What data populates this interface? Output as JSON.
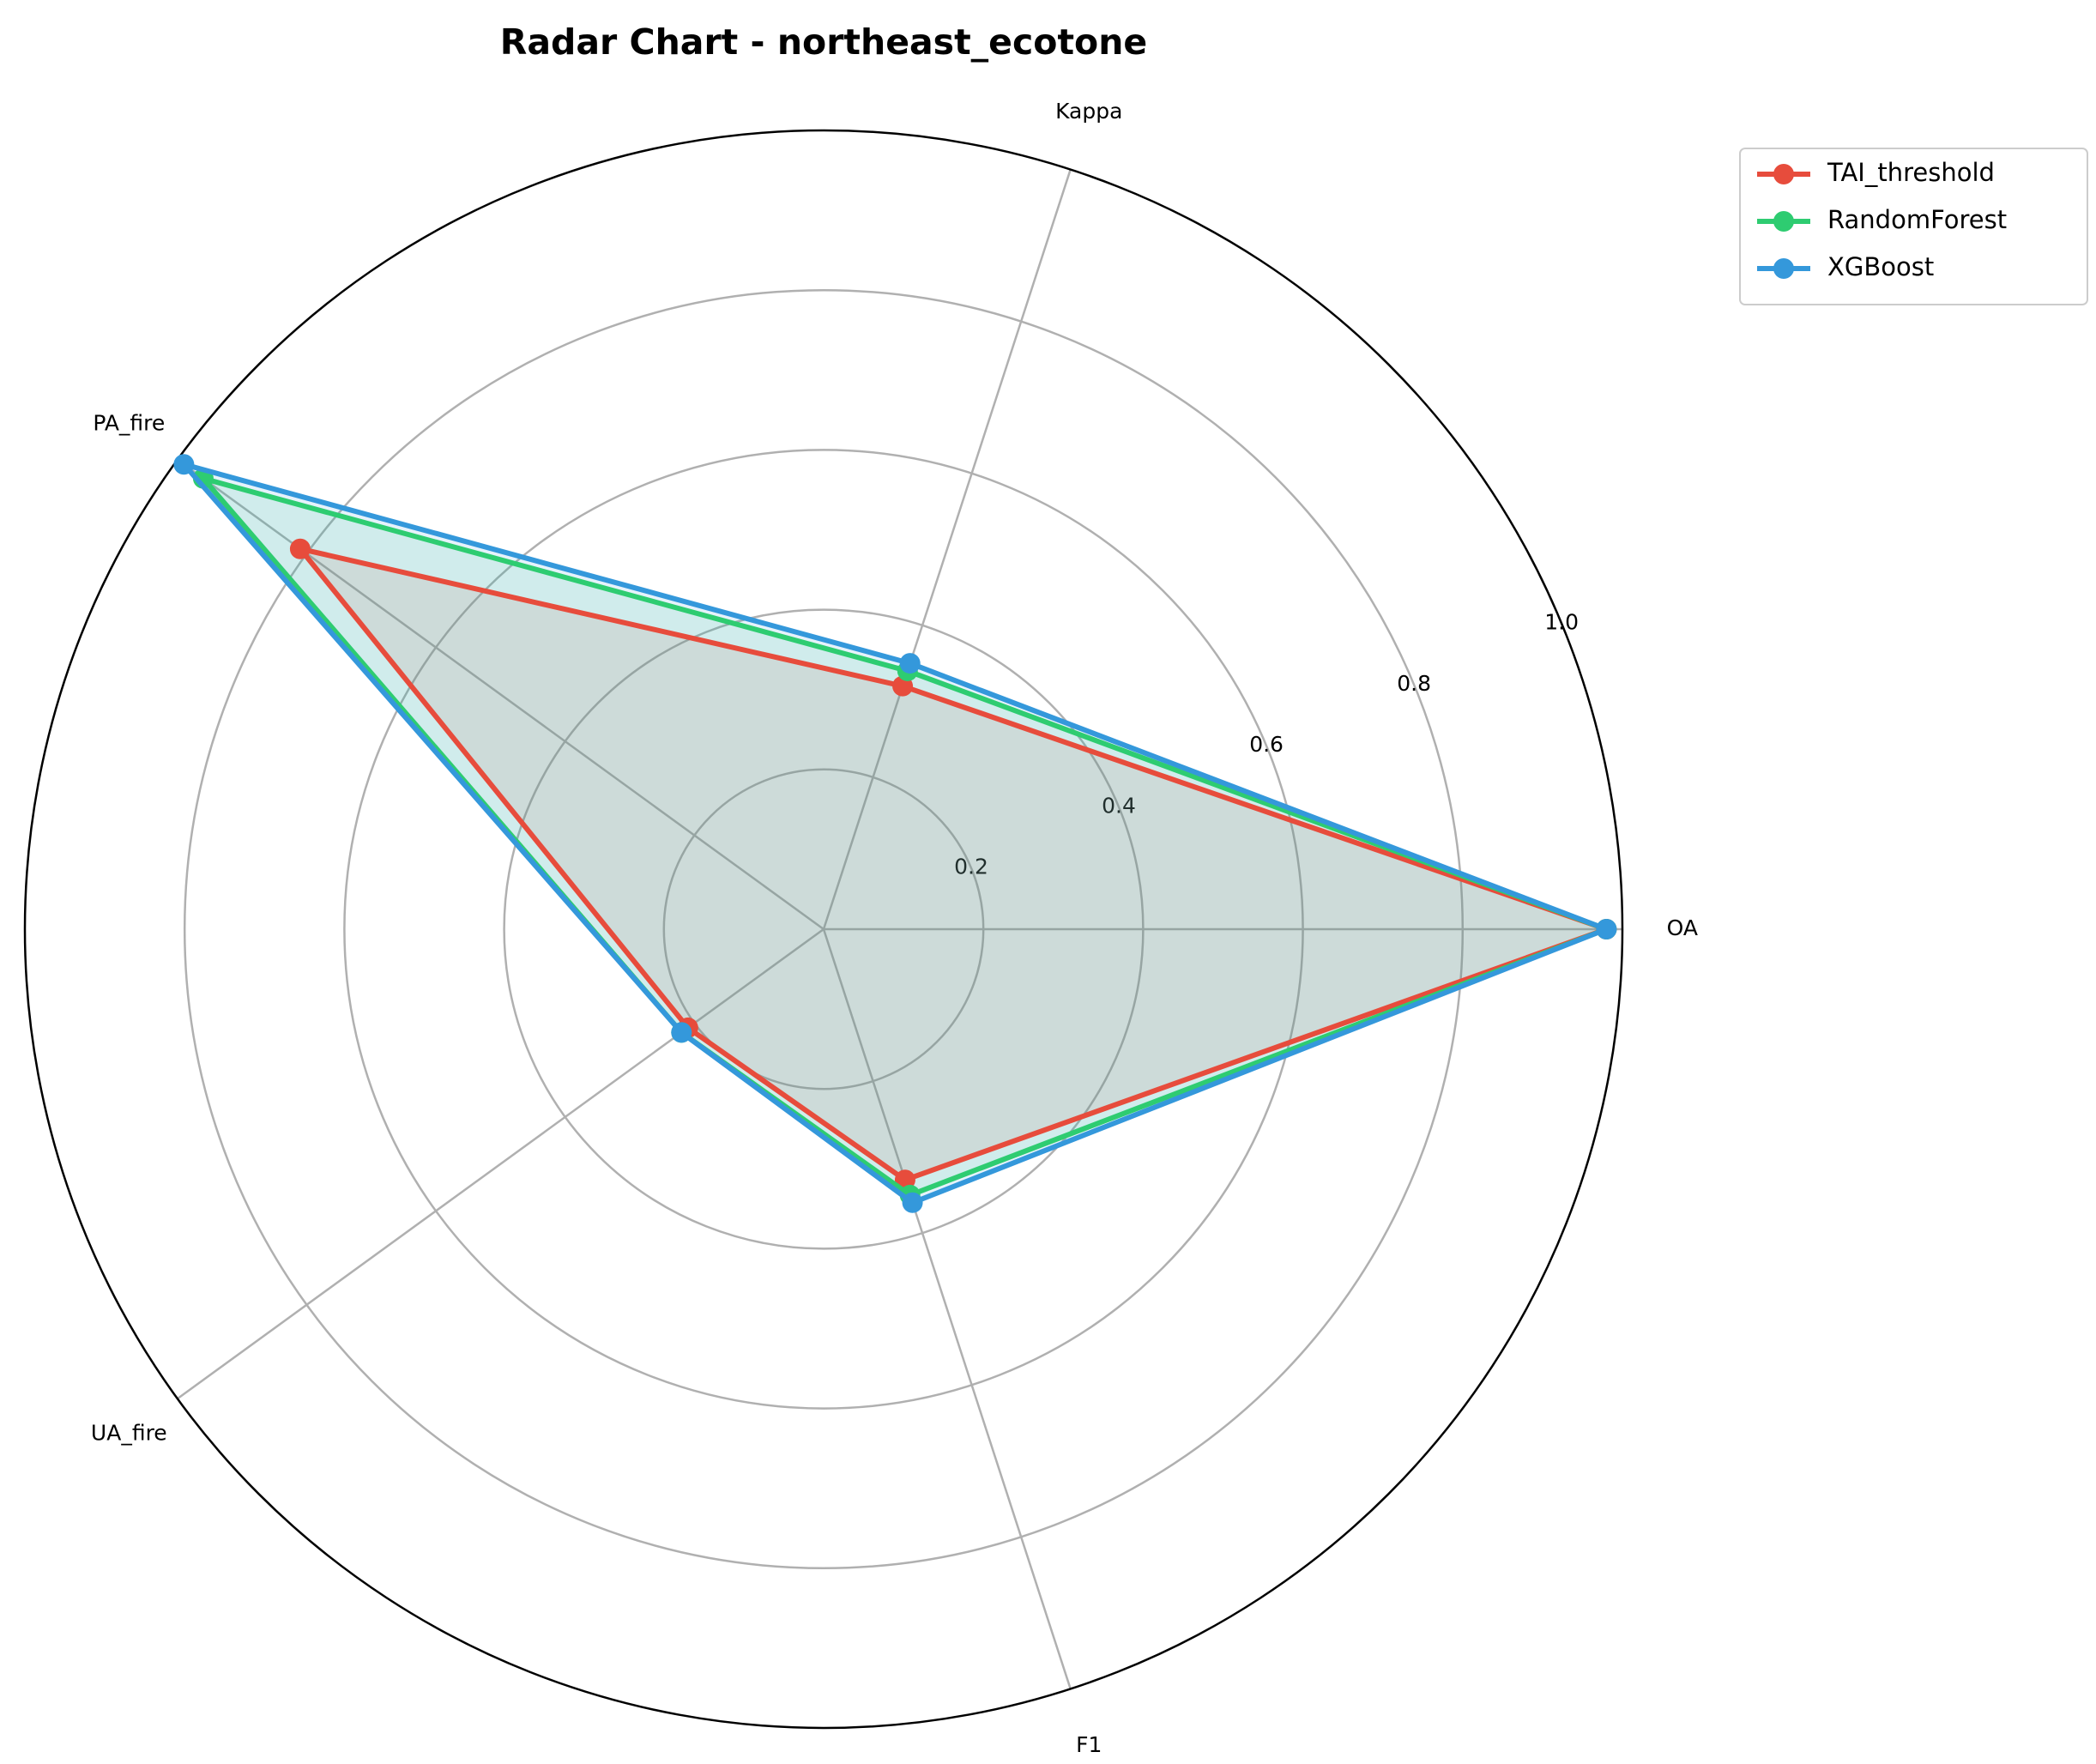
{
  "chart_data": {
    "type": "radar",
    "title": "Radar Chart - northeast_ecotone",
    "categories": [
      "OA",
      "Kappa",
      "PA_fire",
      "UA_fire",
      "F1"
    ],
    "series": [
      {
        "name": "TAI_threshold",
        "color": "#e74c3c",
        "values": [
          0.98,
          0.32,
          0.81,
          0.21,
          0.33
        ]
      },
      {
        "name": "RandomForest",
        "color": "#2ecc71",
        "values": [
          0.98,
          0.34,
          0.96,
          0.22,
          0.35
        ]
      },
      {
        "name": "XGBoost",
        "color": "#3498db",
        "values": [
          0.98,
          0.35,
          0.99,
          0.22,
          0.36
        ]
      }
    ],
    "ylim": [
      0,
      1
    ],
    "yticks": [
      0.2,
      0.4,
      0.6,
      0.8,
      {
        "value": 1,
        "label": "1.0"
      }
    ],
    "grid": true,
    "legend": "upper right"
  }
}
